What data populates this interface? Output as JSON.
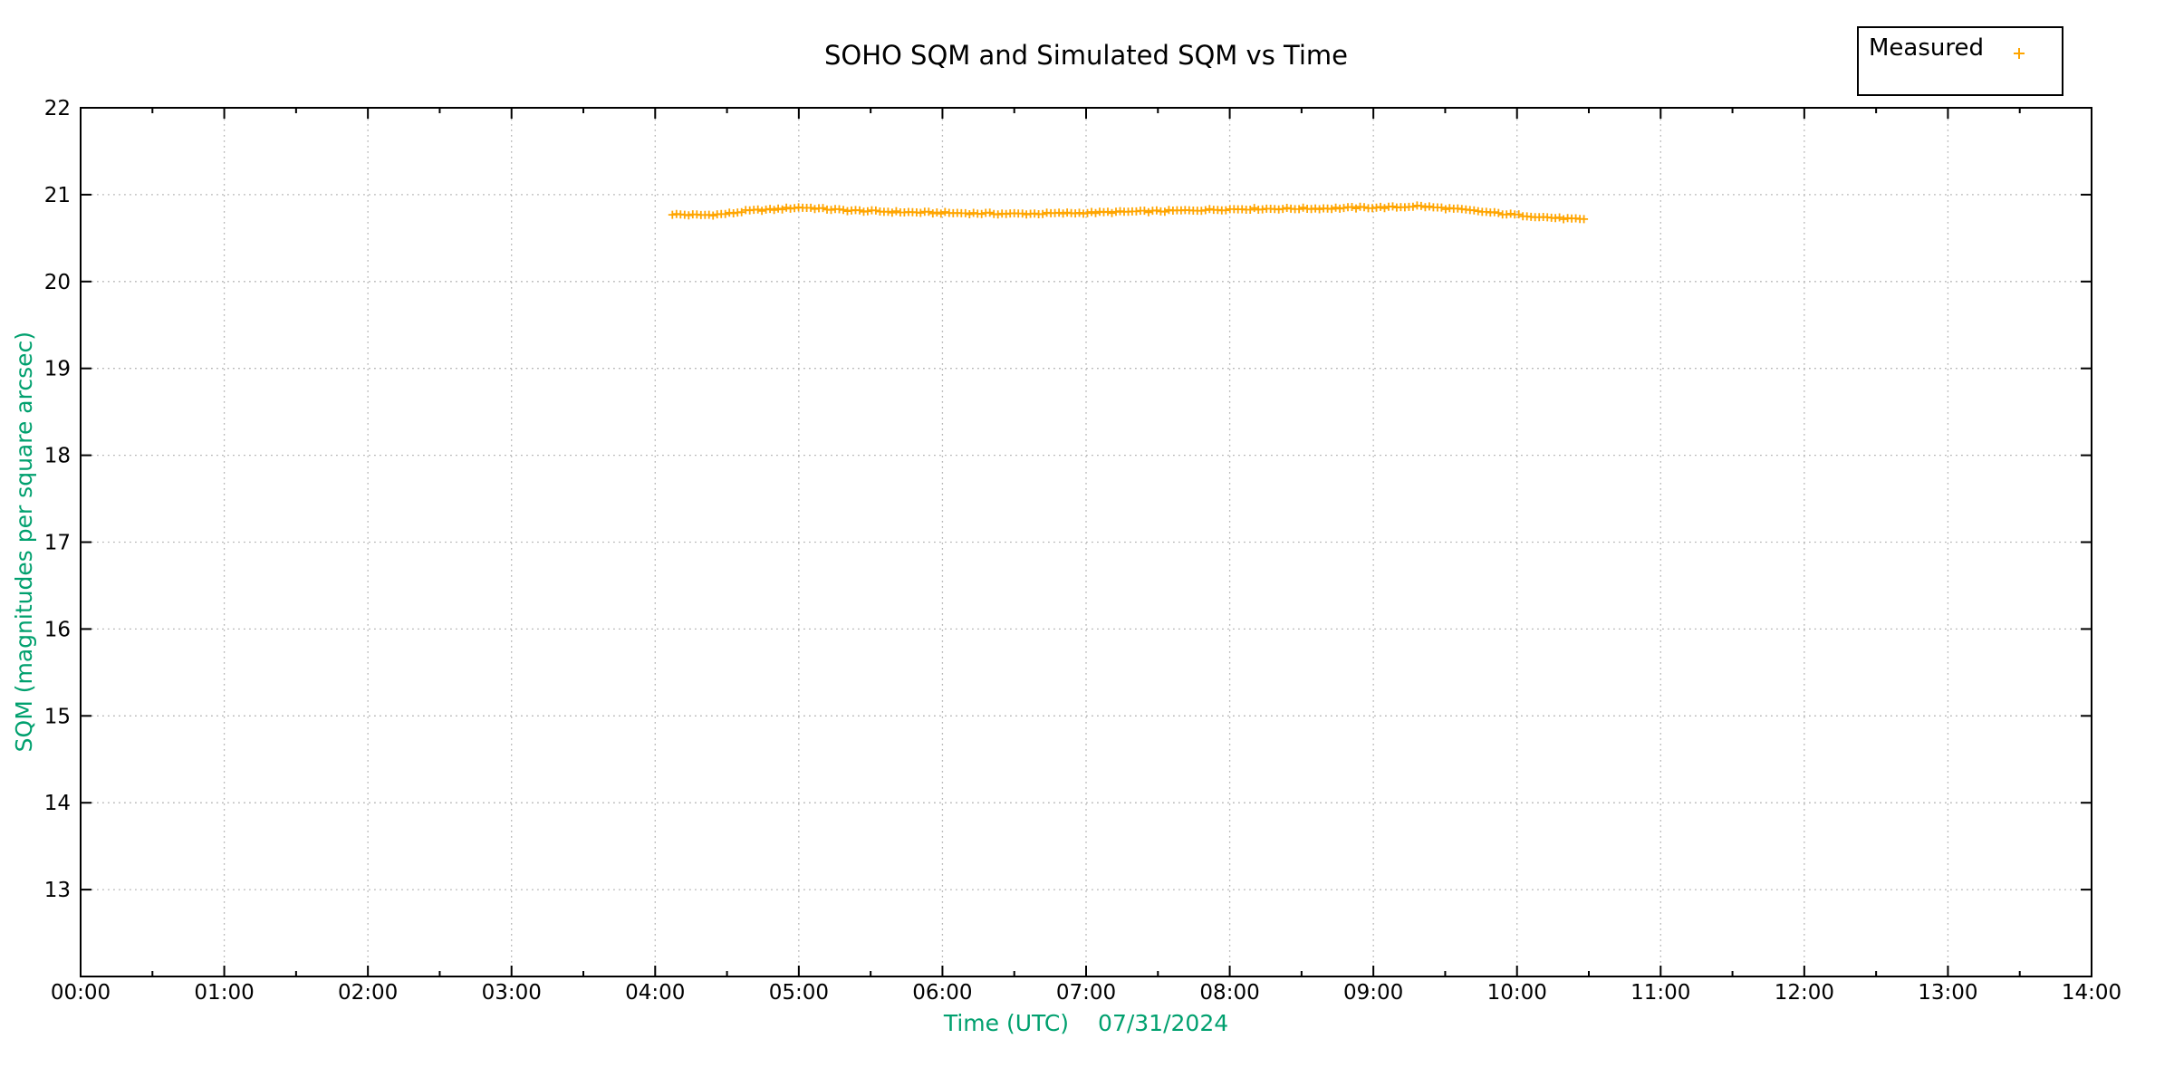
{
  "title": "SOHO SQM and Simulated SQM vs Time",
  "legend": {
    "position": "top-right-outside",
    "entries": [
      {
        "label": "Measured",
        "marker": "plus",
        "marker_color": "#FFA500"
      }
    ]
  },
  "colors": {
    "axis_label_green": "#00A06E",
    "data_orange": "#FFA500",
    "grid_gray": "#B5B5B5",
    "axis_black": "#000000",
    "background": "#FFFFFF"
  },
  "chart_data": {
    "type": "scatter",
    "title": "SOHO SQM and Simulated SQM vs Time",
    "xlabel": "Time (UTC)",
    "xlabel_date": "07/31/2024",
    "ylabel": "SQM (magnitudes per square arcsec)",
    "xlim_hours": [
      0,
      14
    ],
    "ylim": [
      12,
      22
    ],
    "x_tick_labels": [
      "00:00",
      "01:00",
      "02:00",
      "03:00",
      "04:00",
      "05:00",
      "06:00",
      "07:00",
      "08:00",
      "09:00",
      "10:00",
      "11:00",
      "12:00",
      "13:00",
      "14:00"
    ],
    "x_minor_tick_interval_hours": 0.5,
    "y_tick_values": [
      13,
      14,
      15,
      16,
      17,
      18,
      19,
      20,
      21,
      22
    ],
    "grid": "dotted",
    "legend_position": "top-right-outside",
    "series": [
      {
        "name": "Measured",
        "marker": "plus",
        "color": "#FFA500",
        "x_start_hours": 4.12,
        "x_end_hours": 10.48,
        "sample_interval_hours": 0.02833,
        "keyframes": [
          [
            4.12,
            20.775
          ],
          [
            4.22,
            20.768
          ],
          [
            4.33,
            20.765
          ],
          [
            4.45,
            20.773
          ],
          [
            4.55,
            20.79
          ],
          [
            4.63,
            20.812
          ],
          [
            4.72,
            20.822
          ],
          [
            4.82,
            20.828
          ],
          [
            4.9,
            20.84
          ],
          [
            5.0,
            20.853
          ],
          [
            5.08,
            20.848
          ],
          [
            5.2,
            20.833
          ],
          [
            5.35,
            20.818
          ],
          [
            5.5,
            20.81
          ],
          [
            5.7,
            20.8
          ],
          [
            5.9,
            20.793
          ],
          [
            6.1,
            20.788
          ],
          [
            6.3,
            20.783
          ],
          [
            6.5,
            20.78
          ],
          [
            6.7,
            20.782
          ],
          [
            6.9,
            20.788
          ],
          [
            7.1,
            20.795
          ],
          [
            7.3,
            20.803
          ],
          [
            7.5,
            20.81
          ],
          [
            7.7,
            20.818
          ],
          [
            7.9,
            20.828
          ],
          [
            8.1,
            20.836
          ],
          [
            8.3,
            20.838
          ],
          [
            8.5,
            20.84
          ],
          [
            8.7,
            20.843
          ],
          [
            8.9,
            20.85
          ],
          [
            9.05,
            20.853
          ],
          [
            9.18,
            20.856
          ],
          [
            9.3,
            20.87
          ],
          [
            9.45,
            20.85
          ],
          [
            9.6,
            20.83
          ],
          [
            9.75,
            20.805
          ],
          [
            9.9,
            20.78
          ],
          [
            10.05,
            20.76
          ],
          [
            10.2,
            20.74
          ],
          [
            10.33,
            20.725
          ],
          [
            10.48,
            20.71
          ]
        ]
      }
    ]
  }
}
